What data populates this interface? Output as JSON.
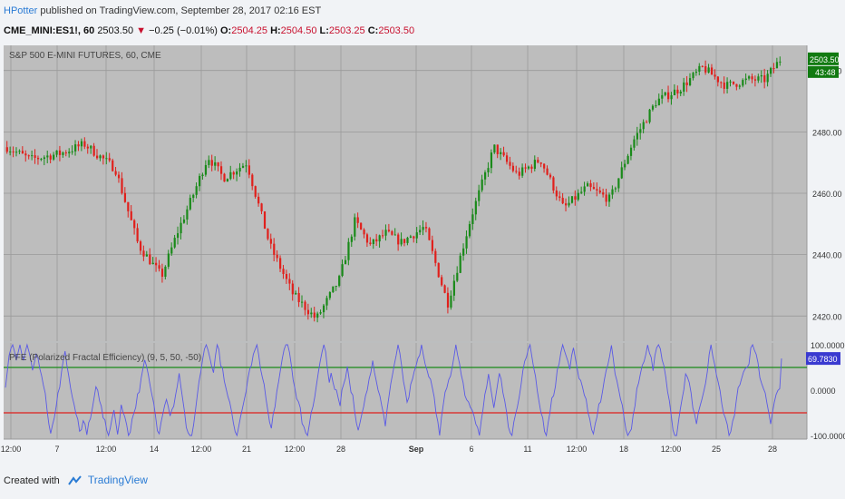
{
  "header": {
    "author": "HPotter",
    "published": "published on TradingView.com, September 28, 2017 02:16 EST",
    "symbol": "CME_MINI:ES1!, 60",
    "last": "2503.50",
    "change": "−0.25 (−0.01%)",
    "o_label": "O:",
    "o": "2504.25",
    "h_label": "H:",
    "h": "2504.50",
    "l_label": "L:",
    "l": "2503.25",
    "c_label": "C:",
    "c": "2503.50"
  },
  "footer": {
    "created": "Created with",
    "brand": "TradingView"
  },
  "colors": {
    "up": "#1a8a1a",
    "down": "#e0201c",
    "pane_bg": "#bdbdbd",
    "indicator": "#5a5ae6",
    "upper_band": "#1a8a1a",
    "lower_band": "#e0201c",
    "price_badge": "#117a11",
    "pfe_badge": "#3a3ad0"
  },
  "chart_data": [
    {
      "type": "candlestick",
      "title": "S&P 500 E-MINI FUTURES, 60, CME",
      "ylim": [
        2413,
        2507
      ],
      "yticks": [
        "2420.00",
        "2440.00",
        "2460.00",
        "2480.00",
        "2500.00"
      ],
      "last_value_label": "2503.50",
      "countdown_label": "43:48",
      "path_x": [
        0,
        3,
        7,
        10,
        14,
        17,
        20,
        22,
        24,
        26,
        28,
        31,
        34,
        37,
        40,
        43,
        45,
        47,
        49,
        51,
        54,
        57,
        60,
        63,
        66,
        69,
        72,
        75,
        78,
        81,
        84,
        87,
        90,
        93,
        96,
        98,
        100
      ],
      "path_y": [
        2475,
        2471,
        2473,
        2476,
        2468,
        2443,
        2433,
        2447,
        2459,
        2472,
        2465,
        2470,
        2443,
        2427,
        2419,
        2432,
        2451,
        2443,
        2447,
        2444,
        2449,
        2424,
        2452,
        2475,
        2466,
        2471,
        2455,
        2462,
        2458,
        2477,
        2490,
        2494,
        2501,
        2495,
        2497,
        2497,
        2503.5
      ]
    },
    {
      "type": "line",
      "title": "PFE (Polarized Fractal Efficiency) (9, 5, 50, -50)",
      "ylim": [
        -100,
        100
      ],
      "yticks": [
        "100.0000",
        "0.0000",
        "-100.0000"
      ],
      "bands": [
        50,
        -50
      ],
      "last_value_label": "69.7830",
      "x_tick_labels": [
        "12:00",
        "7",
        "12:00",
        "14",
        "12:00",
        "21",
        "12:00",
        "28",
        "Sep",
        "6",
        "11",
        "12:00",
        "18",
        "12:00",
        "25",
        "28"
      ]
    }
  ]
}
